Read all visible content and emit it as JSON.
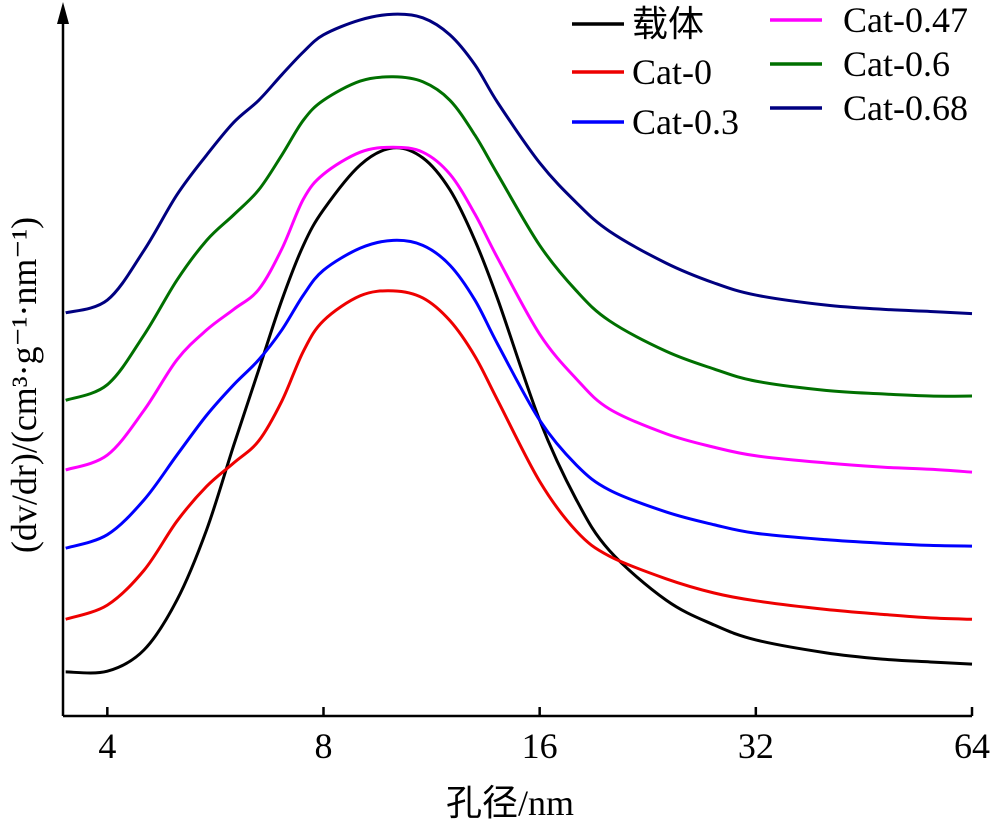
{
  "chart_data": {
    "type": "line",
    "xlabel": "孔径/nm",
    "ylabel": "(dv/dr)/(cm³·g⁻¹·nm⁻¹)",
    "xscale": "log",
    "xlim": [
      3.47,
      64
    ],
    "xticks": [
      4,
      8,
      16,
      32,
      64
    ],
    "ylim": [
      0,
      100
    ],
    "x": [
      3.5,
      4,
      4.5,
      5,
      5.5,
      6,
      6.5,
      7,
      7.5,
      8,
      9,
      10,
      11,
      12,
      13,
      14,
      16,
      18,
      20,
      24,
      28,
      32,
      40,
      48,
      56,
      64
    ],
    "series": [
      {
        "name": "载体",
        "color": "#000000",
        "values": [
          6.2,
          6.3,
          9.3,
          16.3,
          26.2,
          38.1,
          48.7,
          58.5,
          66.2,
          71.2,
          77.5,
          79.9,
          78.5,
          74.0,
          66.9,
          58.5,
          41.6,
          30.4,
          23.3,
          16.3,
          12.8,
          10.7,
          8.9,
          8.0,
          7.6,
          7.3
        ]
      },
      {
        "name": "Cat-0",
        "color": "#ee0000",
        "values": [
          13.6,
          15.6,
          20.5,
          27.4,
          32.3,
          35.6,
          38.7,
          44.3,
          51.3,
          55.6,
          59.1,
          59.8,
          58.8,
          55.6,
          50.6,
          44.3,
          33.0,
          26.0,
          22.5,
          19.3,
          17.3,
          16.2,
          15.0,
          14.3,
          13.8,
          13.6
        ]
      },
      {
        "name": "Cat-0.3",
        "color": "#0000ff",
        "values": [
          23.6,
          25.5,
          30.4,
          36.7,
          42.3,
          46.6,
          50.1,
          54.3,
          59.2,
          62.7,
          65.8,
          66.9,
          66.2,
          63.4,
          58.5,
          52.2,
          41.6,
          35.3,
          31.8,
          28.7,
          26.9,
          25.7,
          24.8,
          24.3,
          24.0,
          23.9
        ]
      },
      {
        "name": "Cat-0.47",
        "color": "#ff00ff",
        "values": [
          34.6,
          36.7,
          43.0,
          50.1,
          54.3,
          57.2,
          60.0,
          65.7,
          72.7,
          76.2,
          79.3,
          80.0,
          79.3,
          76.2,
          70.6,
          64.3,
          53.7,
          47.4,
          43.2,
          39.7,
          37.8,
          36.6,
          35.6,
          35.0,
          34.7,
          34.3
        ]
      },
      {
        "name": "Cat-0.6",
        "color": "#007000",
        "values": [
          44.4,
          46.6,
          53.6,
          61.3,
          66.9,
          70.5,
          74.0,
          78.9,
          83.8,
          86.6,
          89.3,
          89.9,
          89.2,
          86.6,
          81.7,
          76.1,
          66.2,
          59.8,
          55.6,
          51.3,
          48.8,
          47.1,
          45.8,
          45.3,
          45.0,
          45.0
        ]
      },
      {
        "name": "Cat-0.68",
        "color": "#000080",
        "values": [
          56.7,
          58.5,
          65.5,
          73.3,
          78.9,
          83.5,
          86.6,
          90.2,
          93.4,
          95.8,
          97.9,
          98.7,
          98.2,
          95.8,
          91.6,
          86.2,
          77.8,
          72.2,
          68.2,
          63.7,
          60.9,
          59.2,
          57.8,
          57.2,
          56.9,
          56.6
        ]
      }
    ]
  }
}
